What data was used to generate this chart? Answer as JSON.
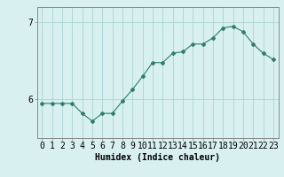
{
  "x": [
    0,
    1,
    2,
    3,
    4,
    5,
    6,
    7,
    8,
    9,
    10,
    11,
    12,
    13,
    14,
    15,
    16,
    17,
    18,
    19,
    20,
    21,
    22,
    23
  ],
  "y": [
    5.95,
    5.95,
    5.95,
    5.95,
    5.82,
    5.72,
    5.82,
    5.82,
    5.98,
    6.13,
    6.3,
    6.48,
    6.48,
    6.6,
    6.62,
    6.72,
    6.72,
    6.8,
    6.93,
    6.95,
    6.88,
    6.72,
    6.6,
    6.52
  ],
  "line_color": "#2e7d6e",
  "marker": "D",
  "marker_size": 2.0,
  "bg_color": "#d8f0f0",
  "grid_color": "#aad4d4",
  "xlabel": "Humidex (Indice chaleur)",
  "xlabel_fontsize": 7,
  "yticks": [
    6,
    7
  ],
  "ylim": [
    5.5,
    7.2
  ],
  "xlim": [
    -0.5,
    23.5
  ],
  "tick_fontsize": 7,
  "spine_color": "#888888"
}
